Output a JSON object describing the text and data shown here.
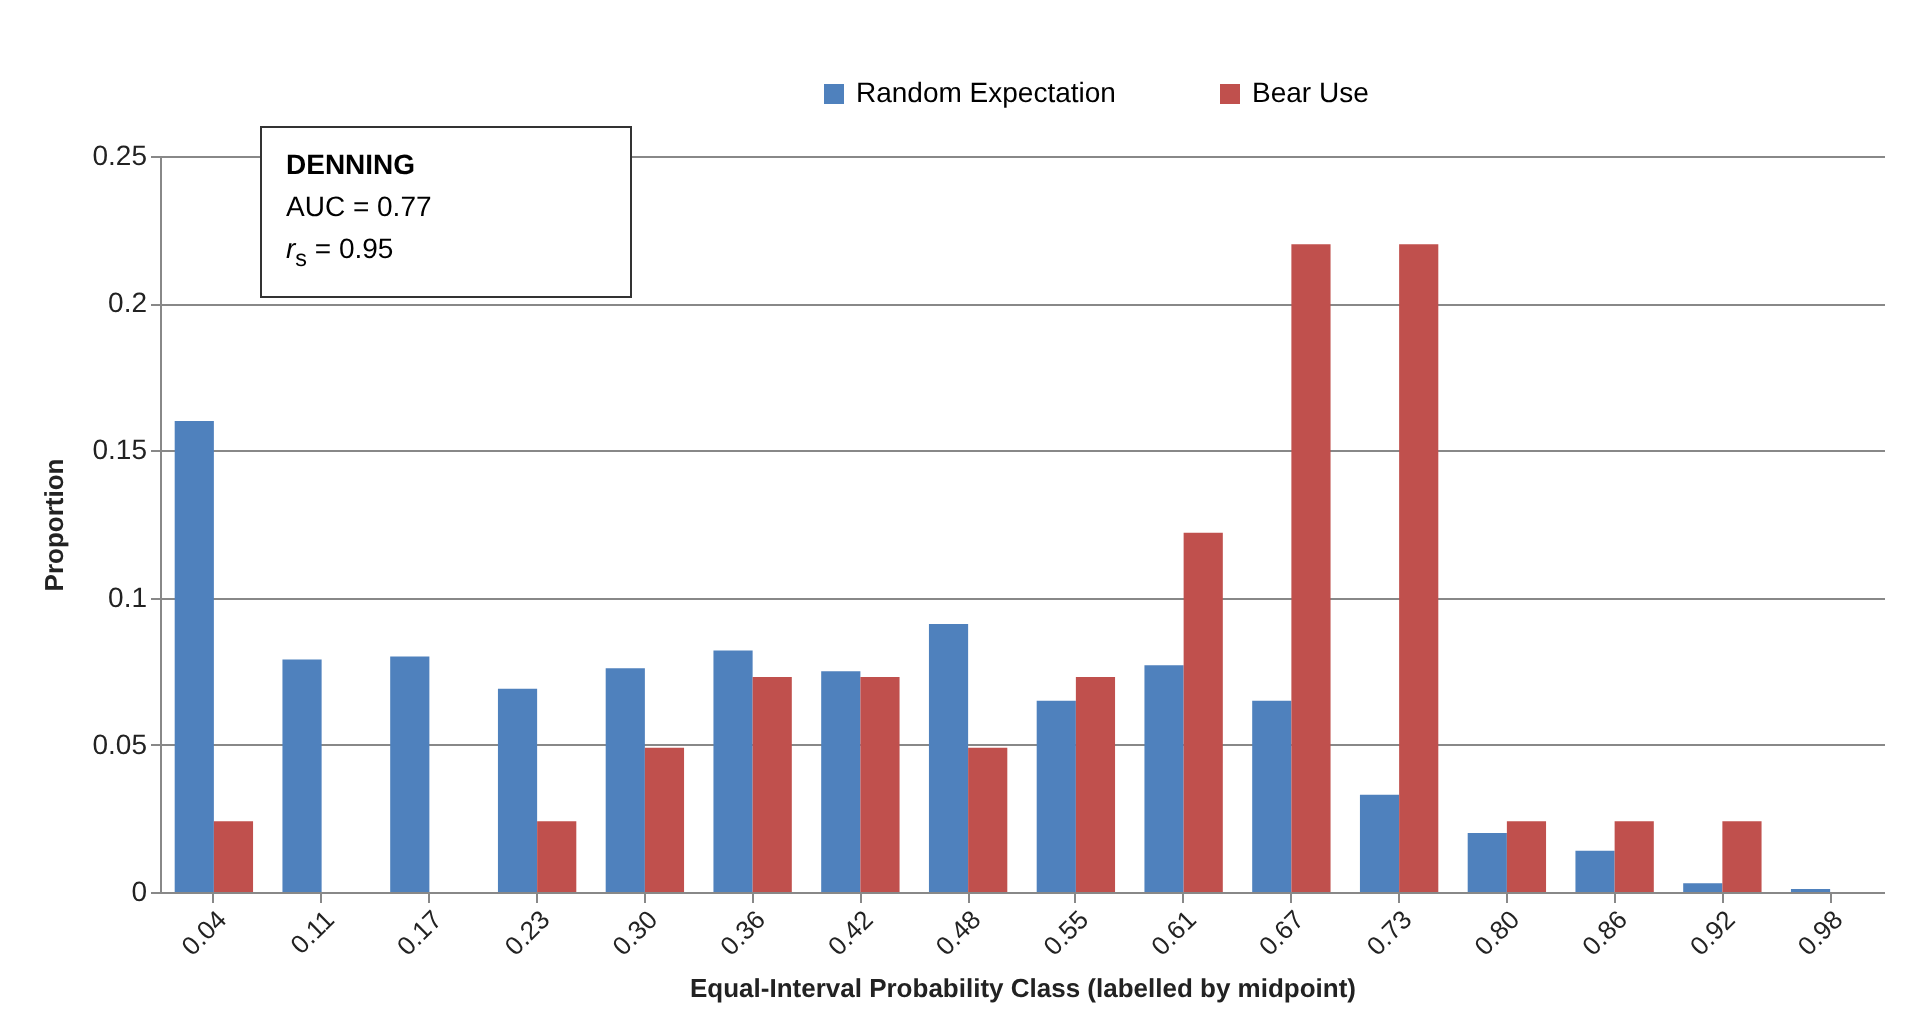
{
  "chart_data": {
    "type": "bar",
    "xlabel": "Equal-Interval Probability Class (labelled by midpoint)",
    "ylabel": "Proportion",
    "categories": [
      "0.04",
      "0.11",
      "0.17",
      "0.23",
      "0.30",
      "0.36",
      "0.42",
      "0.48",
      "0.55",
      "0.61",
      "0.67",
      "0.73",
      "0.80",
      "0.86",
      "0.92",
      "0.98"
    ],
    "series": [
      {
        "name": "Random Expectation",
        "color": "#4f81bd",
        "values": [
          0.16,
          0.079,
          0.08,
          0.069,
          0.076,
          0.082,
          0.075,
          0.091,
          0.065,
          0.077,
          0.065,
          0.033,
          0.02,
          0.014,
          0.003,
          0.001
        ]
      },
      {
        "name": "Bear Use",
        "color": "#c0504d",
        "values": [
          0.024,
          0,
          0,
          0.024,
          0.049,
          0.073,
          0.073,
          0.049,
          0.073,
          0.122,
          0.22,
          0.22,
          0.024,
          0.024,
          0.024,
          0
        ]
      }
    ],
    "ylim": [
      0,
      0.25
    ],
    "yticks": [
      0,
      0.05,
      0.1,
      0.15,
      0.2,
      0.25
    ],
    "grid": "y",
    "legend": "top",
    "annotations": [
      "DENNING",
      "AUC = 0.77",
      "r$_{s}$ = 0.95"
    ]
  }
}
